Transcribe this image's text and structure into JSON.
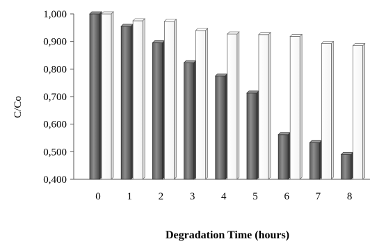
{
  "chart_data": {
    "type": "bar",
    "title": "",
    "xlabel": "Degradation Time (hours)",
    "ylabel": "C/Co",
    "categories": [
      "0",
      "1",
      "2",
      "3",
      "4",
      "5",
      "6",
      "7",
      "8"
    ],
    "series": [
      {
        "values": [
          1.0,
          0.955,
          0.895,
          0.823,
          0.775,
          0.713,
          0.562,
          0.533,
          0.49
        ],
        "color": "#7a7a7a"
      },
      {
        "values": [
          1.0,
          0.975,
          0.973,
          0.94,
          0.927,
          0.925,
          0.918,
          0.893,
          0.885
        ],
        "color": "#ffffff"
      }
    ],
    "ylim": [
      0.4,
      1.0
    ],
    "yticks": [
      "0,400",
      "0,500",
      "0,600",
      "0,700",
      "0,800",
      "0,900",
      "1,000"
    ],
    "grid": false,
    "legend": "none",
    "style": "3d"
  }
}
